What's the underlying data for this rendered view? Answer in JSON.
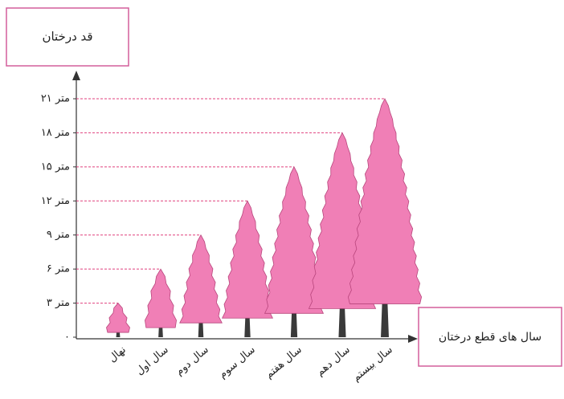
{
  "chart_data": {
    "type": "bar",
    "title": "قد درختان",
    "x_label": "سال های قطع درختان",
    "categories": [
      "نهال",
      "سال اول",
      "سال دوم",
      "سال سوم",
      "سال هفتم",
      "سال دهم",
      "سال بیستم"
    ],
    "values": [
      3,
      6,
      9,
      12,
      15,
      18,
      21
    ],
    "color": "#f07fb6",
    "ylim": [
      0,
      21
    ],
    "yticks": [
      {
        "value": 0,
        "label": "۰"
      },
      {
        "value": 3,
        "label": "۳ متر"
      },
      {
        "value": 6,
        "label": "۶ متر"
      },
      {
        "value": 9,
        "label": "۹ متر"
      },
      {
        "value": 12,
        "label": "۱۲ متر"
      },
      {
        "value": 15,
        "label": "۱۵ متر"
      },
      {
        "value": 18,
        "label": "۱۸ متر"
      },
      {
        "value": 21,
        "label": "۲۱ متر"
      }
    ]
  }
}
